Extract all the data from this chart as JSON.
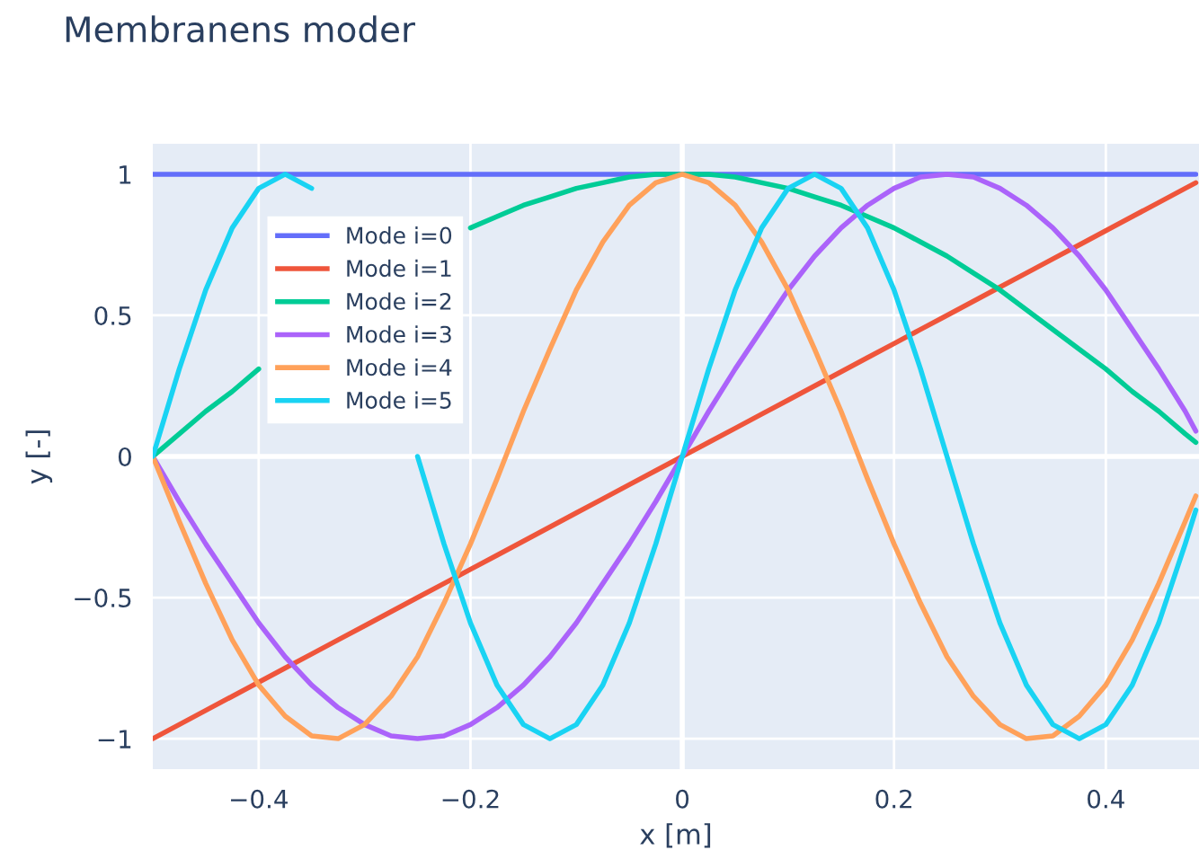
{
  "chart_data": {
    "type": "line",
    "title": "Membranens moder",
    "xlabel": "x [m]",
    "ylabel": "y [-]",
    "x": [
      -0.5,
      -0.475,
      -0.45,
      -0.425,
      -0.4,
      -0.375,
      -0.35,
      -0.325,
      -0.3,
      -0.275,
      -0.25,
      -0.225,
      -0.2,
      -0.175,
      -0.15,
      -0.125,
      -0.1,
      -0.075,
      -0.05,
      -0.025,
      0,
      0.025,
      0.05,
      0.075,
      0.1,
      0.125,
      0.15,
      0.175,
      0.2,
      0.225,
      0.25,
      0.275,
      0.3,
      0.325,
      0.35,
      0.375,
      0.4,
      0.425,
      0.45,
      0.475,
      0.485
    ],
    "series": [
      {
        "name": "Mode i=0",
        "color": "#636efa",
        "values": [
          1,
          1,
          1,
          1,
          1,
          1,
          1,
          1,
          1,
          1,
          1,
          1,
          1,
          1,
          1,
          1,
          1,
          1,
          1,
          1,
          1,
          1,
          1,
          1,
          1,
          1,
          1,
          1,
          1,
          1,
          1,
          1,
          1,
          1,
          1,
          1,
          1,
          1,
          1,
          1,
          1
        ]
      },
      {
        "name": "Mode i=1",
        "color": "#ef553b",
        "values": [
          -1,
          -0.95,
          -0.9,
          -0.85,
          -0.8,
          -0.75,
          -0.7,
          -0.65,
          -0.6,
          -0.55,
          -0.5,
          -0.45,
          -0.4,
          -0.35,
          -0.3,
          -0.25,
          -0.2,
          -0.15,
          -0.1,
          -0.05,
          0,
          0.05,
          0.1,
          0.15,
          0.2,
          0.25,
          0.3,
          0.35,
          0.4,
          0.45,
          0.5,
          0.55,
          0.6,
          0.65,
          0.7,
          0.75,
          0.8,
          0.85,
          0.9,
          0.95,
          0.97
        ]
      },
      {
        "name": "Mode i=2",
        "color": "#00cc96",
        "values": [
          0,
          0.08,
          0.16,
          0.23,
          0.31,
          null,
          null,
          null,
          null,
          null,
          null,
          null,
          0.81,
          0.85,
          0.89,
          0.92,
          0.95,
          0.97,
          0.99,
          1,
          1,
          1,
          0.99,
          0.97,
          0.95,
          0.92,
          0.89,
          0.85,
          0.81,
          0.76,
          0.71,
          0.65,
          0.59,
          0.52,
          0.45,
          0.38,
          0.31,
          0.23,
          0.16,
          0.08,
          0.05
        ]
      },
      {
        "name": "Mode i=3",
        "color": "#ab63fa",
        "values": [
          0,
          -0.16,
          -0.31,
          -0.45,
          -0.59,
          -0.71,
          -0.81,
          -0.89,
          -0.95,
          -0.99,
          -1,
          -0.99,
          -0.95,
          -0.89,
          -0.81,
          -0.71,
          -0.59,
          -0.45,
          -0.31,
          -0.16,
          0,
          0.16,
          0.31,
          0.45,
          0.59,
          0.71,
          0.81,
          0.89,
          0.95,
          0.99,
          1,
          0.99,
          0.95,
          0.89,
          0.81,
          0.71,
          0.59,
          0.45,
          0.31,
          0.16,
          0.09
        ]
      },
      {
        "name": "Mode i=4",
        "color": "#ffa15a",
        "values": [
          0,
          -0.23,
          -0.45,
          -0.65,
          -0.81,
          -0.92,
          -0.99,
          -1,
          -0.95,
          -0.85,
          -0.71,
          -0.52,
          -0.31,
          -0.08,
          0.16,
          0.38,
          0.59,
          0.76,
          0.89,
          0.97,
          1,
          0.97,
          0.89,
          0.76,
          0.59,
          0.38,
          0.16,
          -0.08,
          -0.31,
          -0.52,
          -0.71,
          -0.85,
          -0.95,
          -1,
          -0.99,
          -0.92,
          -0.81,
          -0.65,
          -0.45,
          -0.23,
          -0.14
        ]
      },
      {
        "name": "Mode i=5",
        "color": "#19d3f3",
        "values": [
          0,
          0.31,
          0.59,
          0.81,
          0.95,
          1,
          0.95,
          null,
          null,
          null,
          0,
          -0.31,
          -0.59,
          -0.81,
          -0.95,
          -1,
          -0.95,
          -0.81,
          -0.59,
          -0.31,
          0,
          0.31,
          0.59,
          0.81,
          0.95,
          1,
          0.95,
          0.81,
          0.59,
          0.31,
          0,
          -0.31,
          -0.59,
          -0.81,
          -0.95,
          -1,
          -0.95,
          -0.81,
          -0.59,
          -0.31,
          -0.19
        ]
      }
    ],
    "xlim": [
      -0.5,
      0.488
    ],
    "ylim": [
      -1.108,
      1.108
    ],
    "xticks": [
      {
        "value": -0.4,
        "label": "−0.4"
      },
      {
        "value": -0.2,
        "label": "−0.2"
      },
      0,
      0.2,
      0.4
    ],
    "yticks": [
      {
        "value": -1,
        "label": "−1"
      },
      {
        "value": -0.5,
        "label": "−0.5"
      },
      0,
      0.5,
      1
    ],
    "grid": true,
    "legend": "top left",
    "line_style": "solid",
    "marker": "none"
  }
}
